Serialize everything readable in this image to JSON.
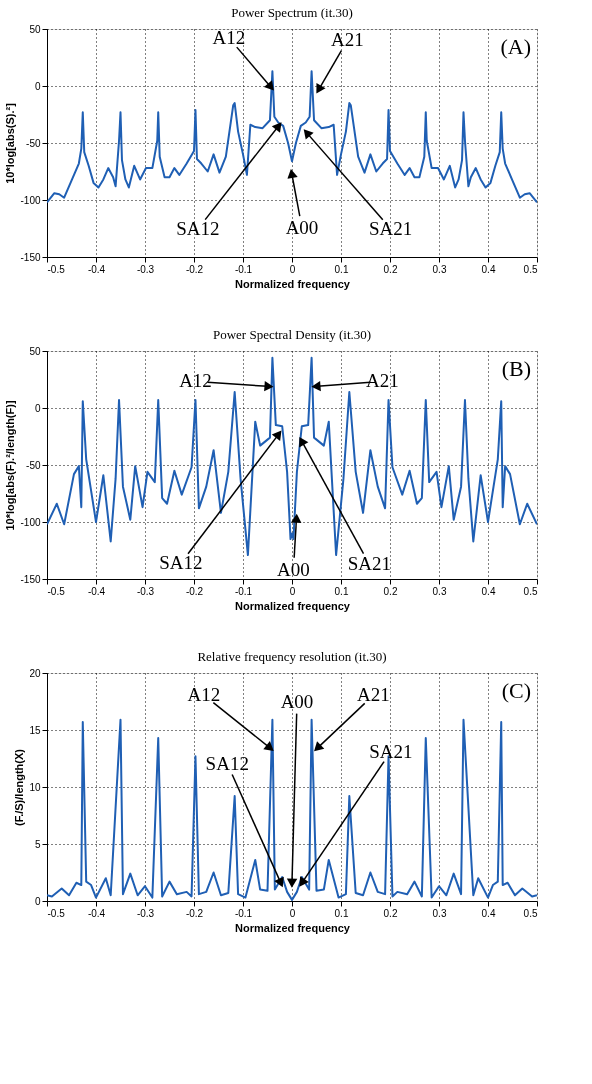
{
  "chart_data": [
    {
      "type": "line",
      "title": "Power Spectrum (it.30)",
      "xlabel": "Normalized frequency",
      "ylabel": "10*log[abs(S).²]",
      "xlim": [
        -0.5,
        0.5
      ],
      "xticks": [
        -0.5,
        -0.4,
        -0.3,
        -0.2,
        -0.1,
        0,
        0.1,
        0.2,
        0.3,
        0.4,
        0.5
      ],
      "ylim": [
        -150,
        50
      ],
      "yticks": [
        -150,
        -100,
        -50,
        0,
        50
      ],
      "grid": true,
      "series": [
        {
          "color": "#1f5fb4",
          "x": [
            -0.5,
            -0.485,
            -0.475,
            -0.465,
            -0.45,
            -0.435,
            -0.43,
            -0.427,
            -0.424,
            -0.415,
            -0.405,
            -0.395,
            -0.385,
            -0.375,
            -0.365,
            -0.36,
            -0.353,
            -0.35,
            -0.347,
            -0.34,
            -0.333,
            -0.322,
            -0.31,
            -0.298,
            -0.285,
            -0.275,
            -0.273,
            -0.27,
            -0.26,
            -0.25,
            -0.24,
            -0.23,
            -0.215,
            -0.2,
            -0.197,
            -0.194,
            -0.185,
            -0.172,
            -0.16,
            -0.148,
            -0.135,
            -0.12,
            -0.117,
            -0.11,
            -0.1,
            -0.092,
            -0.085,
            -0.075,
            -0.06,
            -0.045,
            -0.04,
            -0.036,
            -0.028,
            -0.018,
            -0.008,
            0,
            0.008,
            0.018,
            0.028,
            0.036,
            0.04,
            0.045,
            0.06,
            0.075,
            0.085,
            0.092,
            0.1,
            0.11,
            0.117,
            0.12,
            0.135,
            0.148,
            0.16,
            0.172,
            0.185,
            0.194,
            0.197,
            0.2,
            0.215,
            0.23,
            0.24,
            0.25,
            0.26,
            0.27,
            0.273,
            0.275,
            0.285,
            0.298,
            0.31,
            0.322,
            0.333,
            0.34,
            0.347,
            0.35,
            0.353,
            0.36,
            0.365,
            0.375,
            0.385,
            0.395,
            0.405,
            0.415,
            0.424,
            0.427,
            0.43,
            0.435,
            0.45,
            0.465,
            0.475,
            0.485,
            0.5
          ],
          "values": [
            -102,
            -94,
            -95,
            -98,
            -83,
            -68,
            -55,
            -23,
            -58,
            -70,
            -85,
            -89,
            -82,
            -72,
            -80,
            -88,
            -48,
            -23,
            -65,
            -82,
            -89,
            -70,
            -82,
            -72,
            -72,
            -48,
            -23,
            -62,
            -80,
            -80,
            -72,
            -78,
            -68,
            -57,
            -21,
            -64,
            -68,
            -75,
            -60,
            -76,
            -62,
            -17,
            -15,
            -40,
            -60,
            -78,
            -34,
            -36,
            -37,
            -30,
            13,
            -27,
            -32,
            -35,
            -50,
            -66,
            -50,
            -35,
            -32,
            -27,
            13,
            -30,
            -37,
            -36,
            -34,
            -78,
            -60,
            -40,
            -15,
            -17,
            -62,
            -76,
            -60,
            -75,
            -68,
            -64,
            -21,
            -57,
            -68,
            -78,
            -72,
            -80,
            -80,
            -62,
            -23,
            -48,
            -72,
            -72,
            -82,
            -70,
            -89,
            -82,
            -65,
            -23,
            -48,
            -88,
            -80,
            -72,
            -82,
            -89,
            -85,
            -70,
            -58,
            -23,
            -55,
            -68,
            -83,
            -98,
            -95,
            -94,
            -102
          ]
        }
      ],
      "annotations": [
        "(A)",
        {
          "text": "A12",
          "x": -0.045,
          "y": 0
        },
        {
          "text": "A21",
          "x": 0.056,
          "y": -2
        },
        {
          "text": "SA12",
          "x": -0.029,
          "y": -36
        },
        {
          "text": "A00",
          "x": 0,
          "y": -78
        },
        {
          "text": "SA21",
          "x": 0.032,
          "y": -42
        }
      ]
    },
    {
      "type": "line",
      "title": "Power Spectral Density (it.30)",
      "xlabel": "Normalized frequency",
      "ylabel": "10*log[abs(F).²/length(F)]",
      "xlim": [
        -0.5,
        0.5
      ],
      "xticks": [
        -0.5,
        -0.4,
        -0.3,
        -0.2,
        -0.1,
        0,
        0.1,
        0.2,
        0.3,
        0.4,
        0.5
      ],
      "ylim": [
        -150,
        50
      ],
      "yticks": [
        -150,
        -100,
        -50,
        0,
        50
      ],
      "grid": true,
      "series": [
        {
          "color": "#1f5fb4",
          "x": [
            -0.5,
            -0.48,
            -0.465,
            -0.445,
            -0.435,
            -0.43,
            -0.427,
            -0.42,
            -0.4,
            -0.385,
            -0.37,
            -0.36,
            -0.353,
            -0.345,
            -0.33,
            -0.32,
            -0.305,
            -0.295,
            -0.28,
            -0.273,
            -0.265,
            -0.255,
            -0.24,
            -0.225,
            -0.205,
            -0.197,
            -0.19,
            -0.175,
            -0.16,
            -0.145,
            -0.13,
            -0.117,
            -0.105,
            -0.09,
            -0.075,
            -0.065,
            -0.045,
            -0.04,
            -0.033,
            -0.02,
            -0.01,
            -0.003,
            0,
            0.003,
            0.01,
            0.02,
            0.033,
            0.04,
            0.045,
            0.065,
            0.075,
            0.09,
            0.105,
            0.117,
            0.13,
            0.145,
            0.16,
            0.175,
            0.19,
            0.197,
            0.205,
            0.225,
            0.24,
            0.255,
            0.265,
            0.273,
            0.28,
            0.295,
            0.305,
            0.32,
            0.33,
            0.345,
            0.353,
            0.36,
            0.37,
            0.385,
            0.4,
            0.42,
            0.427,
            0.43,
            0.435,
            0.445,
            0.465,
            0.48,
            0.5
          ],
          "values": [
            -102,
            -84,
            -102,
            -58,
            -51,
            -87,
            6,
            -45,
            -100,
            -59,
            -117,
            -62,
            7,
            -69,
            -98,
            -51,
            -87,
            -56,
            -65,
            7,
            -79,
            -84,
            -55,
            -76,
            -52,
            7,
            -88,
            -69,
            -37,
            -92,
            -56,
            14,
            -62,
            -129,
            -12,
            -33,
            -26,
            44,
            -15,
            -16,
            -56,
            -115,
            -110,
            -115,
            -56,
            -16,
            -15,
            44,
            -26,
            -33,
            -12,
            -129,
            -62,
            14,
            -56,
            -92,
            -37,
            -69,
            -88,
            7,
            -52,
            -76,
            -55,
            -84,
            -79,
            7,
            -65,
            -56,
            -87,
            -51,
            -98,
            -69,
            7,
            -62,
            -117,
            -59,
            -100,
            -45,
            6,
            -87,
            -51,
            -58,
            -102,
            -84,
            -102
          ]
        }
      ],
      "annotations": [
        "(B)",
        {
          "text": "A12",
          "x": -0.05,
          "y": 19
        },
        {
          "text": "A21",
          "x": 0.052,
          "y": 19
        },
        {
          "text": "SA12",
          "x": -0.029,
          "y": -24
        },
        {
          "text": "A00",
          "x": 0.009,
          "y": -98
        },
        {
          "text": "SA21",
          "x": 0.021,
          "y": -30
        }
      ]
    },
    {
      "type": "line",
      "title": "Relative frequency resolution (it.30)",
      "xlabel": "Normalized frequency",
      "ylabel": "(F./S)/length(X)",
      "xlim": [
        -0.5,
        0.5
      ],
      "xticks": [
        -0.5,
        -0.4,
        -0.3,
        -0.2,
        -0.1,
        0,
        0.1,
        0.2,
        0.3,
        0.4,
        0.5
      ],
      "ylim": [
        0,
        20
      ],
      "yticks": [
        0,
        5,
        10,
        15,
        20
      ],
      "grid": true,
      "series": [
        {
          "color": "#1f5fb4",
          "x": [
            -0.5,
            -0.49,
            -0.47,
            -0.455,
            -0.44,
            -0.43,
            -0.427,
            -0.42,
            -0.41,
            -0.4,
            -0.38,
            -0.37,
            -0.35,
            -0.345,
            -0.33,
            -0.315,
            -0.3,
            -0.285,
            -0.273,
            -0.265,
            -0.25,
            -0.235,
            -0.215,
            -0.205,
            -0.197,
            -0.19,
            -0.175,
            -0.16,
            -0.145,
            -0.13,
            -0.117,
            -0.11,
            -0.095,
            -0.075,
            -0.065,
            -0.05,
            -0.04,
            -0.035,
            -0.02,
            -0.01,
            0,
            0.01,
            0.02,
            0.035,
            0.04,
            0.05,
            0.065,
            0.075,
            0.095,
            0.11,
            0.117,
            0.13,
            0.145,
            0.16,
            0.175,
            0.19,
            0.197,
            0.205,
            0.215,
            0.235,
            0.25,
            0.265,
            0.273,
            0.285,
            0.3,
            0.315,
            0.33,
            0.345,
            0.35,
            0.37,
            0.38,
            0.4,
            0.41,
            0.42,
            0.427,
            0.43,
            0.44,
            0.455,
            0.47,
            0.49,
            0.5
          ],
          "values": [
            0.5,
            0.4,
            1.1,
            0.5,
            1.6,
            1.4,
            15.7,
            1.7,
            1.4,
            0.3,
            2.0,
            0.5,
            15.9,
            0.6,
            2.4,
            0.5,
            1.3,
            0.3,
            14.3,
            0.4,
            1.7,
            0.6,
            0.8,
            0.4,
            12.7,
            0.6,
            0.8,
            2.5,
            0.5,
            0.7,
            9.2,
            0.6,
            0.3,
            3.6,
            1.0,
            0.9,
            15.9,
            1.0,
            2.1,
            0.8,
            0.1,
            0.8,
            2.1,
            1.0,
            15.9,
            0.9,
            1.0,
            3.6,
            0.3,
            0.6,
            9.2,
            0.7,
            0.5,
            2.5,
            0.8,
            0.6,
            12.7,
            0.4,
            0.8,
            0.6,
            1.7,
            0.4,
            14.3,
            0.3,
            1.3,
            0.5,
            2.4,
            0.6,
            15.9,
            0.5,
            2.0,
            0.3,
            1.4,
            1.7,
            15.7,
            1.4,
            1.6,
            0.5,
            1.1,
            0.4,
            0.5
          ]
        }
      ],
      "annotations": [
        "(C)",
        {
          "text": "A12",
          "x": -0.047,
          "y": 13.5
        },
        {
          "text": "A00",
          "x": 0,
          "y": 1.7
        },
        {
          "text": "A21",
          "x": 0.054,
          "y": 13.5
        },
        {
          "text": "SA12",
          "x": -0.024,
          "y": 1.7
        },
        {
          "text": "SA21",
          "x": 0.022,
          "y": 1.7
        }
      ]
    }
  ]
}
